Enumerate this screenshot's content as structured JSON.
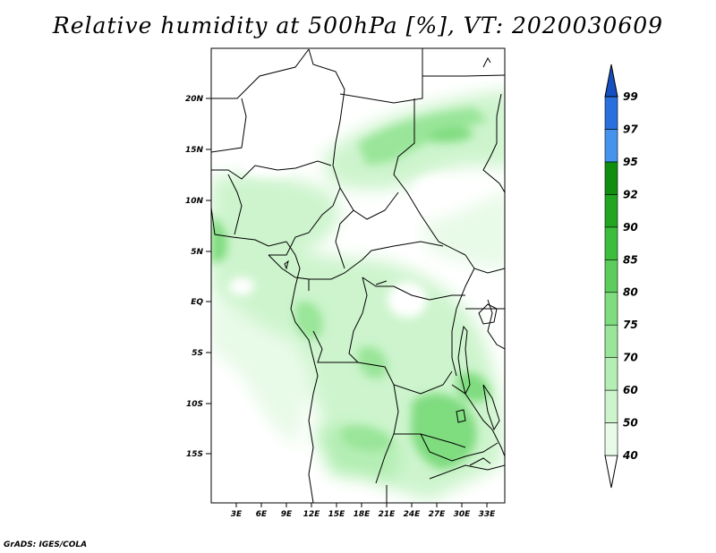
{
  "title": "Relative humidity at 500hPa [%], VT: 2020030609",
  "credit": "GrADS: IGES/COLA",
  "map": {
    "lon_labels": [
      "3E",
      "6E",
      "9E",
      "12E",
      "15E",
      "18E",
      "21E",
      "24E",
      "27E",
      "30E",
      "33E"
    ],
    "lat_labels": [
      "20N",
      "15N",
      "10N",
      "5N",
      "EQ",
      "5S",
      "10S",
      "15S"
    ]
  },
  "colorbar": {
    "levels": [
      "40",
      "50",
      "60",
      "70",
      "75",
      "80",
      "85",
      "90",
      "92",
      "95",
      "97",
      "99"
    ],
    "fill_colors": [
      "#ffffff",
      "#e8fae8",
      "#cdf4cd",
      "#b4eeb4",
      "#99e599",
      "#7fdc7f",
      "#5ccd5c",
      "#3cbe3c",
      "#22a622",
      "#108e10",
      "#4494ee",
      "#2a6fde",
      "#1650c0"
    ]
  }
}
